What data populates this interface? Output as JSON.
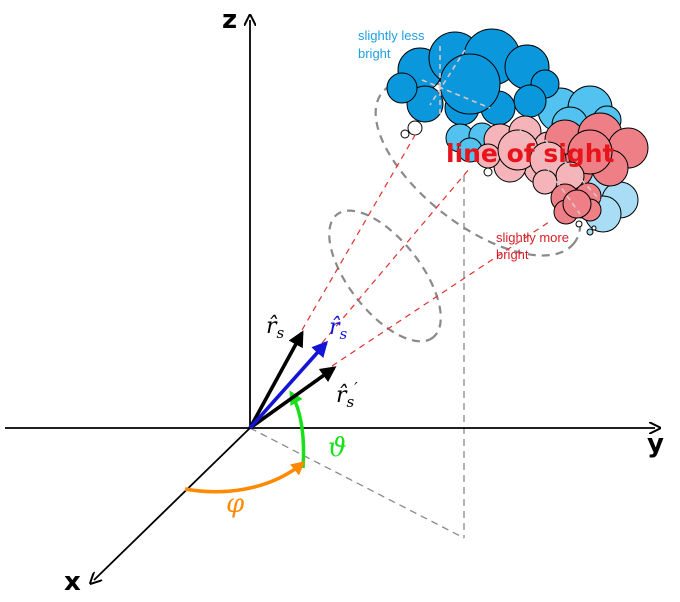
{
  "axes": {
    "z": "z",
    "y": "y",
    "x": "x"
  },
  "annotations": {
    "less_bright_line1": "slightly less",
    "less_bright_line2": "bright",
    "more_bright_line1": "slightly more",
    "more_bright_line2": "bright",
    "line_of_sight": "line of sight"
  },
  "vectors": {
    "rs_black": {
      "base": "r̂",
      "sub": "s"
    },
    "rs_blue": {
      "base": "r̂",
      "sub": "s"
    },
    "rs_prime": {
      "base": "r̂",
      "sub": "s",
      "prime": "′"
    }
  },
  "angles": {
    "theta": "ϑ",
    "phi": "φ"
  },
  "colors": {
    "axis": "#000000",
    "guide_dash": "#8a8a8a",
    "sight_dash": "#e03030",
    "cloud_blue_dark": "#0b97dc",
    "cloud_blue_light": "#52c3f0",
    "cloud_blue_pale": "#a9dcf5",
    "cloud_red": "#ef7f86",
    "cloud_pink": "#f5b4b9",
    "vector_blue": "#1414d6",
    "theta_arc": "#19e019",
    "phi_arc": "#ff8a00"
  }
}
